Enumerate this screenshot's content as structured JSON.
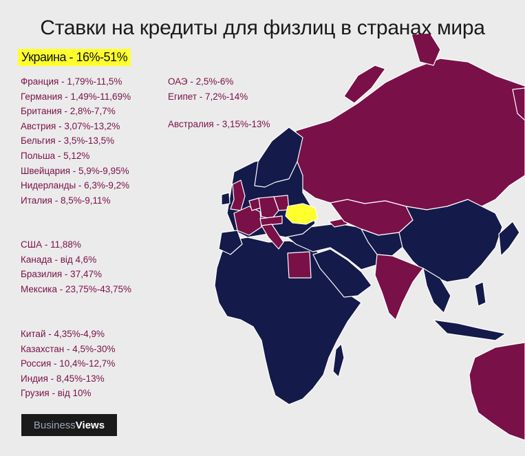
{
  "title": "Ставки на кредиты для физлиц в странах мира",
  "highlight": "Украина - 16%-51%",
  "lists": {
    "europe": [
      "Франция - 1,79%-11,5%",
      "Германия - 1,49%-11,69%",
      "Британия - 2,8%-7,7%",
      "Австрия - 3,07%-13,2%",
      "Бельгия - 3,5%-13,5%",
      "Польша - 5,12%",
      "Швейцария - 5,9%-9,95%",
      "Нидерланды - 6,3%-9,2%",
      "Италия - 8,5%-9,11%"
    ],
    "middle": [
      "ОАЭ - 2,5%-6%",
      "Египет - 7,2%-14%"
    ],
    "australia": [
      "Австралия - 3,15%-13%"
    ],
    "americas": [
      "США - 11,88%",
      "Канада - від 4,6%",
      "Бразилия - 37,47%",
      "Мексика - 23,75%-43,75%"
    ],
    "asia": [
      "Китай - 4,35%-4,9%",
      "Казахстан - 4,5%-30%",
      "Россия - 10,4%-12,7%",
      "Индия - 8,45%-13%",
      "Грузия - від 10%"
    ]
  },
  "logo": {
    "business": "Business",
    "views": "Views"
  },
  "colors": {
    "background": "#ebebeb",
    "highlighted_country": "#7a1048",
    "other_country": "#141a4a",
    "ukraine": "#ffff2e",
    "border": "#ffffff"
  }
}
